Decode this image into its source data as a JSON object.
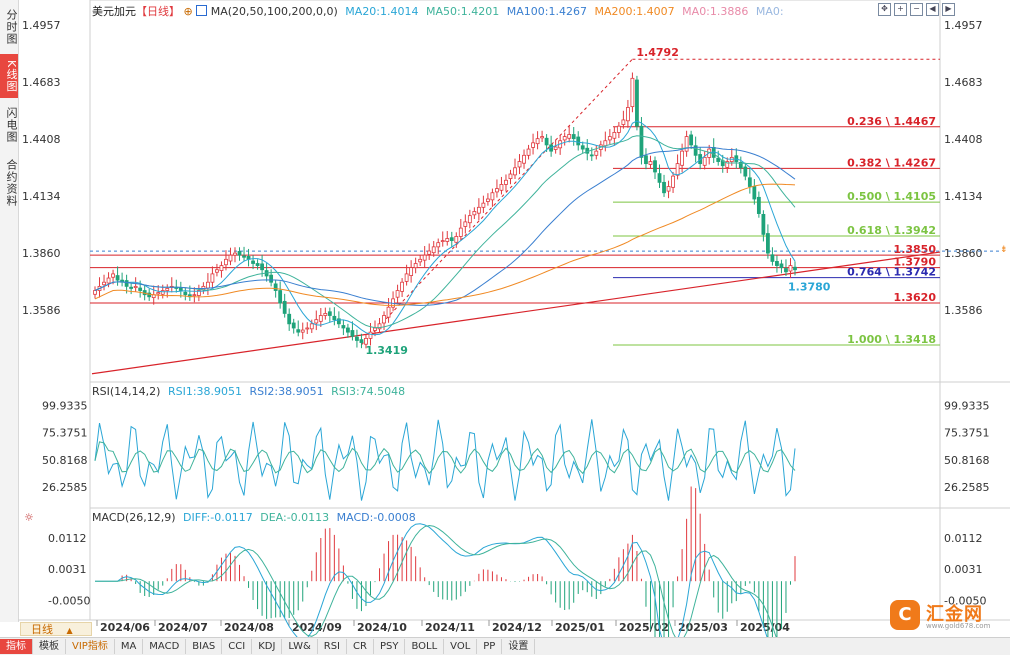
{
  "side_tabs": [
    "分时图",
    "K线图",
    "闪电图",
    "合约资料"
  ],
  "header": {
    "symbol": "美元加元",
    "period_tag": "【日线】",
    "ma_label": "MA(20,50,100,200,0,0)",
    "ma20": "MA20:1.4014",
    "ma50": "MA50:1.4201",
    "ma100": "MA100:1.4267",
    "ma200": "MA200:1.4007",
    "ma0a": "MA0:1.3886",
    "ma0b": "MA0:"
  },
  "rsi_header": {
    "label": "RSI(14,14,2)",
    "rsi1": "RSI1:38.9051",
    "rsi2": "RSI2:38.9051",
    "rsi3": "RSI3:74.5048"
  },
  "macd_header": {
    "label": "MACD(26,12,9)",
    "diff": "DIFF:-0.0117",
    "dea": "DEA:-0.0113",
    "macd": "MACD:-0.0008"
  },
  "period_selector": "日线",
  "toolbar": [
    "指标",
    "模板",
    "VIP指标",
    "MA",
    "MACD",
    "BIAS",
    "CCI",
    "KDJ",
    "LW&",
    "RSI",
    "CR",
    "PSY",
    "BOLL",
    "VOL",
    "PP",
    "设置"
  ],
  "logo_text": "汇金网",
  "logo_sub": "www.gold678.com",
  "colors": {
    "up": "#e0393e",
    "down": "#1fa37a",
    "ma20": "#2aa6d6",
    "ma50": "#3fb39b",
    "ma100": "#3a7fd0",
    "ma200": "#f08a24",
    "fib_red": "#d8232a",
    "fib_green": "#7cc442",
    "fib_blue": "#2b2bb0"
  },
  "chart_data": [
    {
      "type": "candlestick",
      "title": "美元加元【日线】",
      "y_ticks": [
        "1.4957",
        "1.4683",
        "1.4408",
        "1.4134",
        "1.3860",
        "1.3586"
      ],
      "x_ticks": [
        "2024/06",
        "2024/07",
        "2024/08",
        "2024/09",
        "2024/10",
        "2024/11",
        "2024/12",
        "2025/01",
        "2025/02",
        "2025/03",
        "2025/04"
      ],
      "ylim": [
        1.325,
        1.499
      ],
      "high_label": "1.4792",
      "low_label": "1.3419",
      "last_label": "1.3780",
      "right_marker": "1.3850",
      "levels": [
        {
          "label": "0.236 \\ 1.4467",
          "value": 1.4467,
          "color": "red"
        },
        {
          "label": "0.382 \\ 1.4267",
          "value": 1.4267,
          "color": "red"
        },
        {
          "label": "0.500 \\ 1.4105",
          "value": 1.4105,
          "color": "green"
        },
        {
          "label": "0.618 \\ 1.3942",
          "value": 1.3942,
          "color": "green"
        },
        {
          "label": "1.3850",
          "value": 1.385,
          "color": "red"
        },
        {
          "label": "1.3790",
          "value": 1.379,
          "color": "red"
        },
        {
          "label": "0.764 \\ 1.3742",
          "value": 1.3742,
          "color": "blue"
        },
        {
          "label": "1.3620",
          "value": 1.362,
          "color": "red"
        },
        {
          "label": "1.000 \\ 1.3418",
          "value": 1.3418,
          "color": "green"
        }
      ],
      "closes": [
        1.368,
        1.37,
        1.372,
        1.374,
        1.376,
        1.373,
        1.372,
        1.37,
        1.369,
        1.37,
        1.368,
        1.366,
        1.365,
        1.366,
        1.367,
        1.368,
        1.369,
        1.37,
        1.369,
        1.368,
        1.366,
        1.365,
        1.366,
        1.368,
        1.37,
        1.372,
        1.376,
        1.378,
        1.38,
        1.383,
        1.385,
        1.386,
        1.385,
        1.384,
        1.383,
        1.381,
        1.38,
        1.378,
        1.375,
        1.372,
        1.368,
        1.362,
        1.357,
        1.352,
        1.35,
        1.348,
        1.349,
        1.35,
        1.352,
        1.354,
        1.356,
        1.357,
        1.356,
        1.354,
        1.352,
        1.35,
        1.348,
        1.346,
        1.344,
        1.343,
        1.345,
        1.348,
        1.35,
        1.352,
        1.356,
        1.36,
        1.364,
        1.368,
        1.372,
        1.376,
        1.379,
        1.381,
        1.383,
        1.385,
        1.387,
        1.389,
        1.391,
        1.392,
        1.393,
        1.392,
        1.394,
        1.398,
        1.401,
        1.404,
        1.406,
        1.408,
        1.41,
        1.412,
        1.415,
        1.417,
        1.419,
        1.421,
        1.424,
        1.427,
        1.43,
        1.433,
        1.436,
        1.439,
        1.441,
        1.442,
        1.438,
        1.435,
        1.437,
        1.44,
        1.442,
        1.443,
        1.441,
        1.438,
        1.436,
        1.434,
        1.433,
        1.435,
        1.438,
        1.44,
        1.442,
        1.444,
        1.447,
        1.45,
        1.456,
        1.47,
        1.447,
        1.432,
        1.429,
        1.43,
        1.425,
        1.42,
        1.415,
        1.418,
        1.423,
        1.429,
        1.435,
        1.442,
        1.438,
        1.433,
        1.429,
        1.432,
        1.436,
        1.432,
        1.43,
        1.428,
        1.43,
        1.432,
        1.43,
        1.427,
        1.423,
        1.418,
        1.412,
        1.405,
        1.395,
        1.386,
        1.382,
        1.38,
        1.379,
        1.377,
        1.38,
        1.378
      ]
    },
    {
      "type": "line",
      "title": "RSI(14,14,2)",
      "y_ticks": [
        "99.9335",
        "75.3751",
        "50.8168",
        "26.2585"
      ],
      "ylim": [
        10,
        105
      ],
      "series": [
        {
          "name": "RSI1",
          "last": 38.9051
        },
        {
          "name": "RSI2",
          "last": 38.9051
        },
        {
          "name": "RSI3",
          "last": 74.5048
        }
      ]
    },
    {
      "type": "bar",
      "title": "MACD(26,12,9)",
      "y_ticks": [
        "0.0112",
        "0.0031",
        "-0.0050"
      ],
      "ylim": [
        -0.0095,
        0.0145
      ],
      "series": [
        {
          "name": "DIFF",
          "last": -0.0117
        },
        {
          "name": "DEA",
          "last": -0.0113
        },
        {
          "name": "MACD",
          "last": -0.0008
        }
      ]
    }
  ]
}
